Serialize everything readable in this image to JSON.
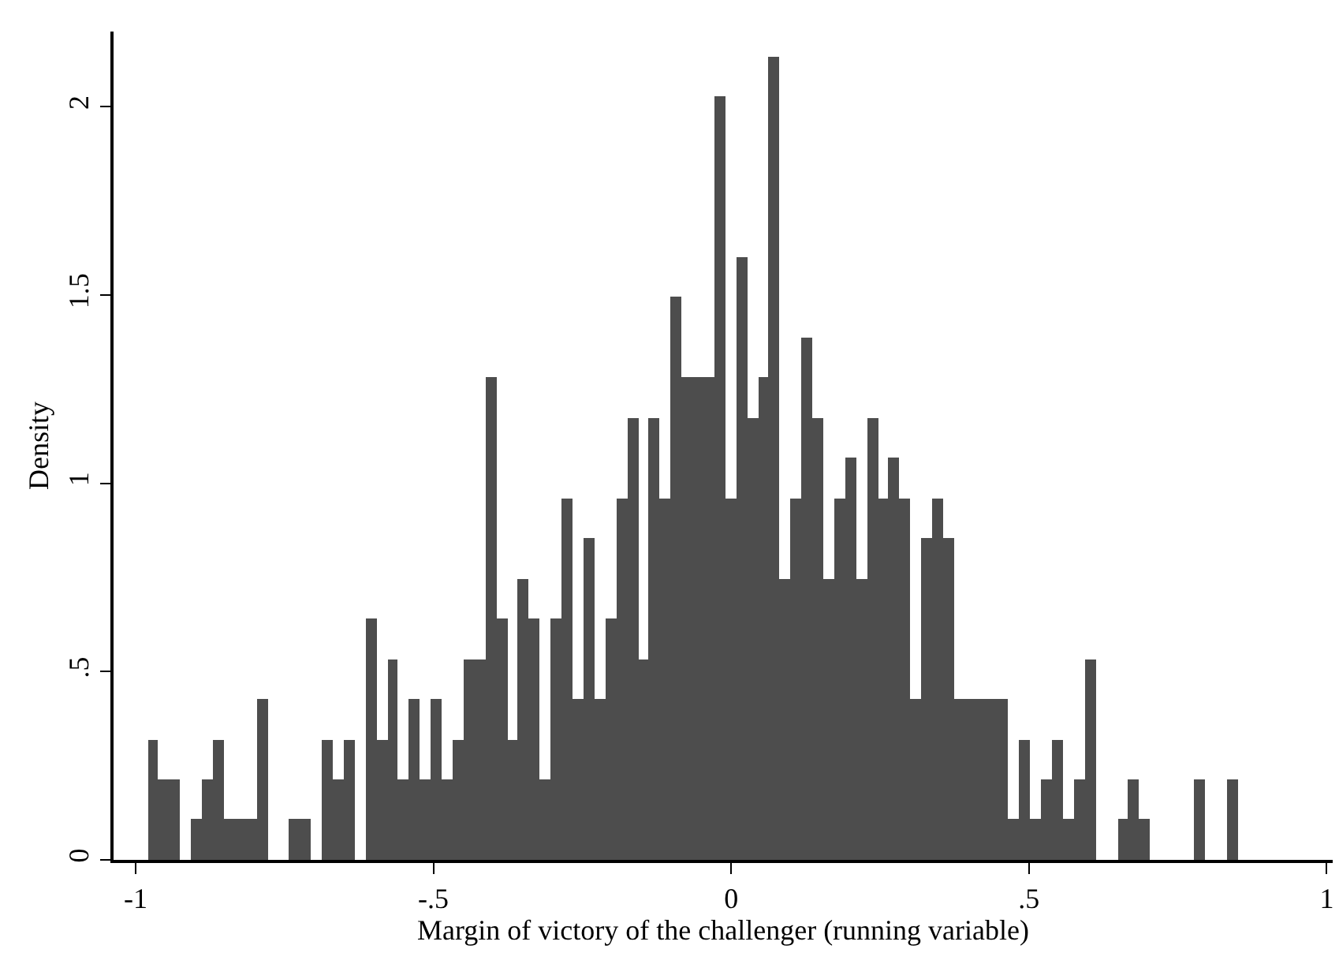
{
  "chart_data": {
    "type": "histogram",
    "xlabel": "Margin of victory of the challenger (running variable)",
    "ylabel": "Density",
    "color": "#4d4d4d",
    "bins": [
      -0.98,
      -0.9617,
      -0.9434,
      -0.9251,
      -0.9068,
      -0.8885,
      -0.8702,
      -0.8519,
      -0.8336,
      -0.8153,
      -0.797,
      -0.7787,
      -0.7604,
      -0.7421,
      -0.7238,
      -0.7055,
      -0.6872,
      -0.6689,
      -0.6506,
      -0.6323,
      -0.614,
      -0.5957,
      -0.5774,
      -0.5591,
      -0.5408,
      -0.5225,
      -0.5042,
      -0.4859,
      -0.4676,
      -0.4493,
      -0.431,
      -0.4127,
      -0.3944,
      -0.3761,
      -0.3578,
      -0.3395,
      -0.3212,
      -0.3029,
      -0.2846,
      -0.2663,
      -0.248,
      -0.2297,
      -0.2114,
      -0.1931,
      -0.1748,
      -0.1565,
      -0.1382,
      -0.1199,
      -0.1016,
      -0.0833,
      -0.065,
      -0.0467,
      -0.0284,
      -0.0101,
      0.0082,
      0.0265,
      0.0448,
      0.0631,
      0.0814,
      0.0997,
      0.118,
      0.1363,
      0.1546,
      0.1729,
      0.1912,
      0.2095,
      0.2278,
      0.2461,
      0.2644,
      0.2827,
      0.301,
      0.3193,
      0.3376,
      0.3559,
      0.3742,
      0.3925,
      0.4108,
      0.4291,
      0.4474,
      0.4657,
      0.484,
      0.5023,
      0.5206,
      0.5389,
      0.5572,
      0.5755,
      0.5938,
      0.6121,
      0.6304,
      0.6487,
      0.667,
      0.6853,
      0.7036,
      0.7219,
      0.7402,
      0.7585,
      0.7768,
      0.7951,
      0.8134,
      0.8317,
      0.85
    ],
    "values": [
      0.32,
      0.213,
      0.213,
      0,
      0.107,
      0.213,
      0.32,
      0.107,
      0.107,
      0.107,
      0.427,
      0,
      0,
      0.107,
      0.107,
      0,
      0.32,
      0.213,
      0.32,
      0,
      0.64,
      0.32,
      0.534,
      0.213,
      0.427,
      0.213,
      0.427,
      0.213,
      0.32,
      0.534,
      0.534,
      1.281,
      0.64,
      0.32,
      0.747,
      0.64,
      0.213,
      0.64,
      0.961,
      0.427,
      0.854,
      0.427,
      0.64,
      0.961,
      1.174,
      0.534,
      1.174,
      0.961,
      1.494,
      1.281,
      1.281,
      1.281,
      2.028,
      0.961,
      1.601,
      1.174,
      1.281,
      2.135,
      0.747,
      0.961,
      1.387,
      1.174,
      0.747,
      0.961,
      1.067,
      0.747,
      1.174,
      0.961,
      1.067,
      0.961,
      0.427,
      0.854,
      0.961,
      0.854,
      0.427,
      0.427,
      0.427,
      0.427,
      0.427,
      0.107,
      0.32,
      0.107,
      0.213,
      0.32,
      0.107,
      0.213,
      0.534,
      0,
      0,
      0.107,
      0.213,
      0.107,
      0,
      0,
      0,
      0,
      0.213,
      0,
      0,
      0.213
    ],
    "xlim": [
      -1.037,
      1.01
    ],
    "ylim": [
      0,
      2.2
    ],
    "xticks": [
      -1,
      {
        "value": -0.5,
        "label": "-.5"
      },
      0,
      {
        "value": 0.5,
        "label": ".5"
      },
      1
    ],
    "yticks": [
      0,
      {
        "value": 0.5,
        "label": ".5"
      },
      1,
      1.5,
      2
    ]
  }
}
